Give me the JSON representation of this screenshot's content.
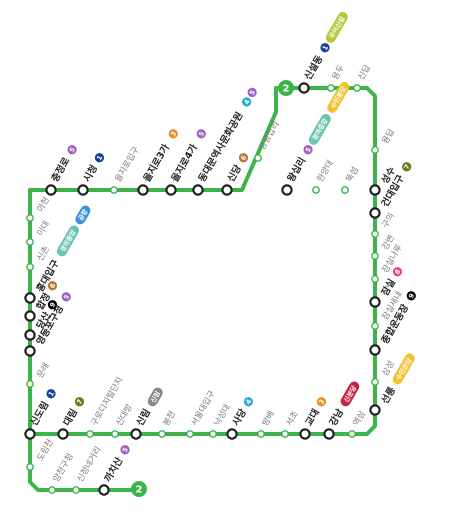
{
  "line": {
    "number": "2",
    "color": "#3db449"
  },
  "colors": {
    "L1": "#1a3f9e",
    "L2": "#3db449",
    "L3": "#f08a24",
    "L4": "#2aa8e0",
    "L5": "#9b5fc0",
    "L6": "#b8762a",
    "L7": "#6b7a1c",
    "L8": "#e8457a",
    "sinbundang": "#c6243d",
    "gyeongui": "#6bc4b0",
    "suin": "#f2c230",
    "airport": "#3d8fd8",
    "ui": "#b7c93a"
  },
  "branch_labels": {
    "ui": "우이신설",
    "suin": "수인분당",
    "gyeongui": "경의중앙",
    "airport": "공항",
    "sinbundang": "신분당",
    "sillim": "신림"
  },
  "stations": [
    {
      "id": "sinseoldong",
      "name": "신설동",
      "transfer": true,
      "badges": [
        "1",
        "ui"
      ]
    },
    {
      "id": "yongdu",
      "name": "용두",
      "transfer": false,
      "badges": []
    },
    {
      "id": "sindap",
      "name": "신답",
      "transfer": false,
      "badges": []
    },
    {
      "id": "chungjeongno",
      "name": "충정로",
      "transfer": true,
      "badges": [
        "5"
      ]
    },
    {
      "id": "cityhall",
      "name": "시청",
      "transfer": true,
      "badges": [
        "1"
      ]
    },
    {
      "id": "euljiro1ga",
      "name": "을지로입구",
      "transfer": false,
      "badges": []
    },
    {
      "id": "euljiro3ga",
      "name": "을지로3가",
      "transfer": true,
      "badges": [
        "3"
      ]
    },
    {
      "id": "euljiro4ga",
      "name": "을지로4가",
      "transfer": true,
      "badges": [
        "5"
      ]
    },
    {
      "id": "ddp",
      "name": "동대문역사문화공원",
      "transfer": true,
      "badges": [
        "4",
        "5"
      ]
    },
    {
      "id": "sindang",
      "name": "신당",
      "transfer": true,
      "badges": [
        "6"
      ]
    },
    {
      "id": "sangwangsimni",
      "name": "상왕십리",
      "transfer": false,
      "badges": []
    },
    {
      "id": "wangsimni",
      "name": "왕십리",
      "transfer": true,
      "badges": [
        "5",
        "gyeongui",
        "suin"
      ]
    },
    {
      "id": "hanyang",
      "name": "한양대",
      "transfer": false,
      "badges": []
    },
    {
      "id": "ttukseom",
      "name": "뚝섬",
      "transfer": false,
      "badges": []
    },
    {
      "id": "seongsu",
      "name": "성수",
      "transfer": true,
      "badges": []
    },
    {
      "id": "yongdap",
      "name": "용답",
      "transfer": false,
      "badges": []
    },
    {
      "id": "kondae",
      "name": "건대입구",
      "transfer": true,
      "badges": [
        "7"
      ]
    },
    {
      "id": "guui",
      "name": "구의",
      "transfer": false,
      "badges": []
    },
    {
      "id": "gangbyeon",
      "name": "강변",
      "transfer": false,
      "badges": []
    },
    {
      "id": "jamsillaru",
      "name": "잠실나루",
      "transfer": false,
      "badges": []
    },
    {
      "id": "jamsil",
      "name": "잠실",
      "transfer": true,
      "badges": [
        "8"
      ]
    },
    {
      "id": "jamsilsaenae",
      "name": "잠실새내",
      "transfer": false,
      "badges": []
    },
    {
      "id": "sportscomplex",
      "name": "종합운동장",
      "transfer": true,
      "badges": [
        "9"
      ]
    },
    {
      "id": "samseong",
      "name": "삼성",
      "transfer": false,
      "badges": []
    },
    {
      "id": "seolleung",
      "name": "선릉",
      "transfer": true,
      "badges": [
        "suin"
      ]
    },
    {
      "id": "ahyeon",
      "name": "아현",
      "transfer": false,
      "badges": []
    },
    {
      "id": "ewha",
      "name": "이대",
      "transfer": false,
      "badges": []
    },
    {
      "id": "sinchon",
      "name": "신촌",
      "transfer": false,
      "badges": []
    },
    {
      "id": "hongdae",
      "name": "홍대입구",
      "transfer": true,
      "badges": [
        "gyeongui",
        "airport"
      ]
    },
    {
      "id": "hapjeong",
      "name": "합정",
      "transfer": true,
      "badges": [
        "6"
      ]
    },
    {
      "id": "dangsan",
      "name": "당산",
      "transfer": true,
      "badges": [
        "9"
      ]
    },
    {
      "id": "yeongdeungpo",
      "name": "영등포구청",
      "transfer": true,
      "badges": [
        "5"
      ]
    },
    {
      "id": "mullae",
      "name": "문래",
      "transfer": false,
      "badges": []
    },
    {
      "id": "sindorim",
      "name": "신도림",
      "transfer": true,
      "badges": [
        "1"
      ]
    },
    {
      "id": "daerim",
      "name": "대림",
      "transfer": true,
      "badges": [
        "7"
      ]
    },
    {
      "id": "guro",
      "name": "구로디지털단지",
      "transfer": false,
      "badges": []
    },
    {
      "id": "sindaebang",
      "name": "신대방",
      "transfer": false,
      "badges": []
    },
    {
      "id": "sillim",
      "name": "신림",
      "transfer": true,
      "badges": [
        "sillim"
      ]
    },
    {
      "id": "bongcheon",
      "name": "봉천",
      "transfer": false,
      "badges": []
    },
    {
      "id": "snu",
      "name": "서울대입구",
      "transfer": false,
      "badges": []
    },
    {
      "id": "nakseongdae",
      "name": "낙성대",
      "transfer": false,
      "badges": []
    },
    {
      "id": "sadang",
      "name": "사당",
      "transfer": true,
      "badges": [
        "4"
      ]
    },
    {
      "id": "bangbae",
      "name": "방배",
      "transfer": false,
      "badges": []
    },
    {
      "id": "seocho",
      "name": "서초",
      "transfer": false,
      "badges": []
    },
    {
      "id": "gyodae",
      "name": "교대",
      "transfer": true,
      "badges": [
        "3"
      ]
    },
    {
      "id": "gangnam",
      "name": "강남",
      "transfer": true,
      "badges": [
        "sinbundang"
      ]
    },
    {
      "id": "yeoksam",
      "name": "역삼",
      "transfer": false,
      "badges": []
    },
    {
      "id": "dorimcheon",
      "name": "도림천",
      "transfer": false,
      "badges": []
    },
    {
      "id": "yangcheon",
      "name": "양천구청",
      "transfer": false,
      "badges": []
    },
    {
      "id": "sinjeongne",
      "name": "신정네거리",
      "transfer": false,
      "badges": []
    },
    {
      "id": "kkachisan",
      "name": "까치산",
      "transfer": true,
      "badges": [
        "5"
      ]
    }
  ]
}
